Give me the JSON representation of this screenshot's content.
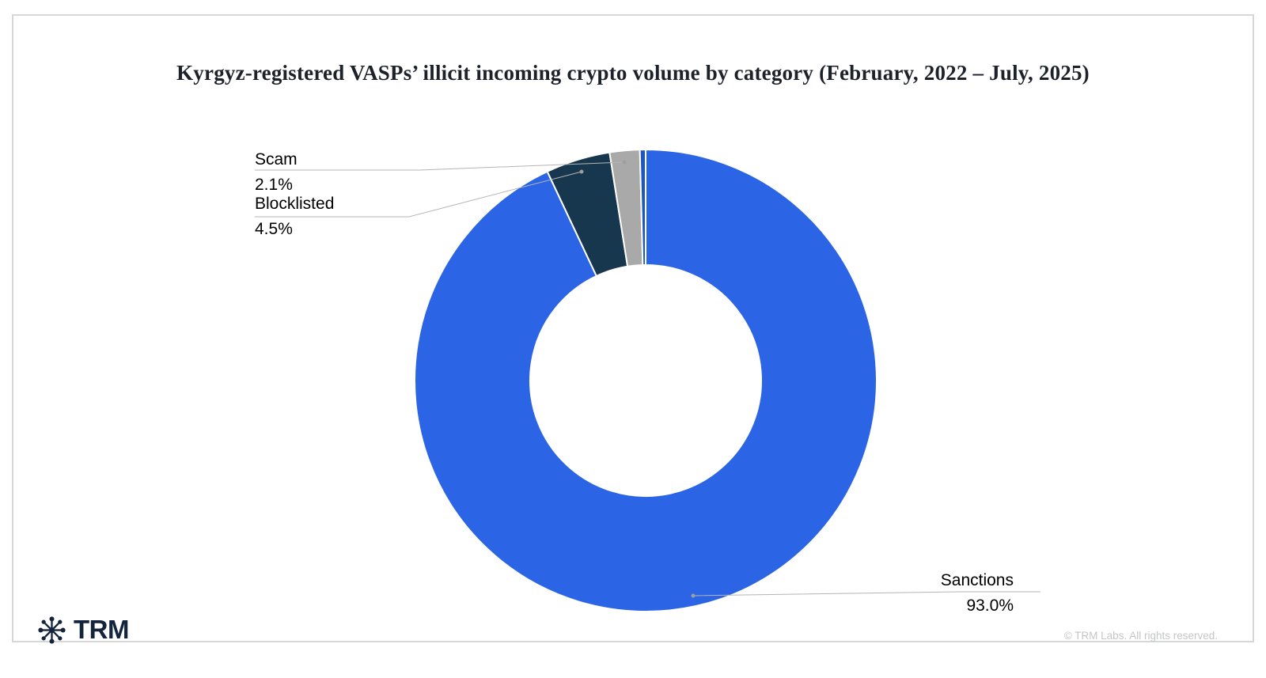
{
  "chart_data": {
    "type": "pie",
    "variant": "donut",
    "title": "Kyrgyz-registered VASPs’ illicit incoming crypto volume by category (February, 2022 – July, 2025)",
    "start_angle_deg": 0,
    "direction": "clockwise",
    "inner_radius_ratio": 0.5,
    "legend_position": "callout-labels",
    "slices": [
      {
        "label": "Sanctions",
        "value": 93.0,
        "pct_label": "93.0%",
        "color": "#2b64e4"
      },
      {
        "label": "Blocklisted",
        "value": 4.5,
        "pct_label": "4.5%",
        "color": "#17374e"
      },
      {
        "label": "Scam",
        "value": 2.1,
        "pct_label": "2.1%",
        "color": "#a9a9a9"
      },
      {
        "label": "",
        "value": 0.4,
        "pct_label": "",
        "color": "#1f57c2"
      }
    ]
  },
  "footer": {
    "brand": "TRM",
    "copyright": "© TRM Labs. All rights reserved."
  },
  "colors": {
    "slice_border": "#ffffff",
    "leader_line": "#b5b5b5",
    "label_text": "#3a3d40",
    "pct_text": "#9b9ea1",
    "card_border": "#d7d7d7",
    "brand_navy": "#14243c"
  }
}
